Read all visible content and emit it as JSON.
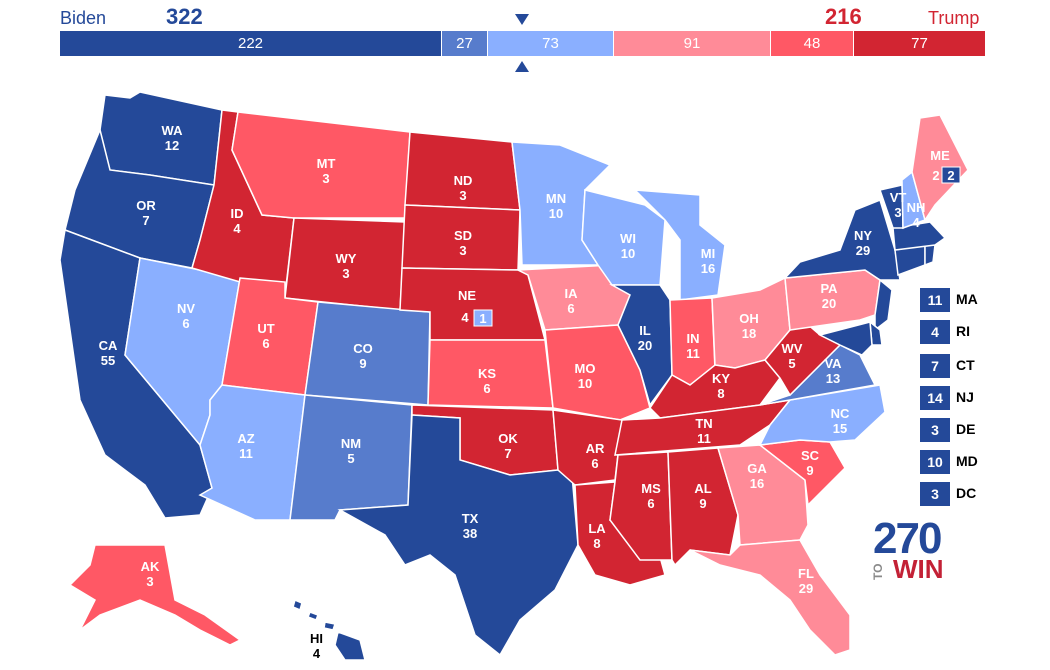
{
  "header": {
    "dem_name": "Biden",
    "dem_total": "322",
    "rep_name": "Trump",
    "rep_total": "216"
  },
  "bar_segments": [
    {
      "value": "222",
      "votes": 222,
      "color": "#244999"
    },
    {
      "value": "27",
      "votes": 27,
      "color": "#577ccc"
    },
    {
      "value": "73",
      "votes": 73,
      "color": "#8aafff"
    },
    {
      "value": "91",
      "votes": 91,
      "color": "#ff8b98"
    },
    {
      "value": "48",
      "votes": 48,
      "color": "#ff5865"
    },
    {
      "value": "77",
      "votes": 77,
      "color": "#d22532"
    }
  ],
  "colors": {
    "safe_d": "#244999",
    "likely_d": "#577ccc",
    "lean_d": "#8aafff",
    "lean_r": "#ff8b98",
    "likely_r": "#ff5865",
    "safe_r": "#d22532"
  },
  "states": {
    "WA": {
      "abbr": "WA",
      "ev": "12"
    },
    "OR": {
      "abbr": "OR",
      "ev": "7"
    },
    "CA": {
      "abbr": "CA",
      "ev": "55"
    },
    "NV": {
      "abbr": "NV",
      "ev": "6"
    },
    "ID": {
      "abbr": "ID",
      "ev": "4"
    },
    "MT": {
      "abbr": "MT",
      "ev": "3"
    },
    "WY": {
      "abbr": "WY",
      "ev": "3"
    },
    "UT": {
      "abbr": "UT",
      "ev": "6"
    },
    "AZ": {
      "abbr": "AZ",
      "ev": "11"
    },
    "CO": {
      "abbr": "CO",
      "ev": "9"
    },
    "NM": {
      "abbr": "NM",
      "ev": "5"
    },
    "ND": {
      "abbr": "ND",
      "ev": "3"
    },
    "SD": {
      "abbr": "SD",
      "ev": "3"
    },
    "NE": {
      "abbr": "NE",
      "ev": "4",
      "district_ev": "1"
    },
    "KS": {
      "abbr": "KS",
      "ev": "6"
    },
    "OK": {
      "abbr": "OK",
      "ev": "7"
    },
    "TX": {
      "abbr": "TX",
      "ev": "38"
    },
    "MN": {
      "abbr": "MN",
      "ev": "10"
    },
    "IA": {
      "abbr": "IA",
      "ev": "6"
    },
    "MO": {
      "abbr": "MO",
      "ev": "10"
    },
    "AR": {
      "abbr": "AR",
      "ev": "6"
    },
    "LA": {
      "abbr": "LA",
      "ev": "8"
    },
    "WI": {
      "abbr": "WI",
      "ev": "10"
    },
    "IL": {
      "abbr": "IL",
      "ev": "20"
    },
    "MI": {
      "abbr": "MI",
      "ev": "16"
    },
    "IN": {
      "abbr": "IN",
      "ev": "11"
    },
    "OH": {
      "abbr": "OH",
      "ev": "18"
    },
    "KY": {
      "abbr": "KY",
      "ev": "8"
    },
    "TN": {
      "abbr": "TN",
      "ev": "11"
    },
    "MS": {
      "abbr": "MS",
      "ev": "6"
    },
    "AL": {
      "abbr": "AL",
      "ev": "9"
    },
    "GA": {
      "abbr": "GA",
      "ev": "16"
    },
    "FL": {
      "abbr": "FL",
      "ev": "29"
    },
    "SC": {
      "abbr": "SC",
      "ev": "9"
    },
    "NC": {
      "abbr": "NC",
      "ev": "15"
    },
    "VA": {
      "abbr": "VA",
      "ev": "13"
    },
    "WV": {
      "abbr": "WV",
      "ev": "5"
    },
    "PA": {
      "abbr": "PA",
      "ev": "20"
    },
    "NY": {
      "abbr": "NY",
      "ev": "29"
    },
    "VT": {
      "abbr": "VT",
      "ev": "3"
    },
    "NH": {
      "abbr": "NH",
      "ev": "4"
    },
    "ME": {
      "abbr": "ME",
      "ev": "2",
      "district_ev": "2"
    },
    "AK": {
      "abbr": "AK",
      "ev": "3"
    },
    "HI": {
      "abbr": "HI",
      "ev": "4"
    }
  },
  "northeast_list": [
    {
      "ev": "11",
      "abbr": "MA"
    },
    {
      "ev": "4",
      "abbr": "RI"
    },
    {
      "ev": "7",
      "abbr": "CT"
    },
    {
      "ev": "14",
      "abbr": "NJ"
    },
    {
      "ev": "3",
      "abbr": "DE"
    },
    {
      "ev": "10",
      "abbr": "MD"
    },
    {
      "ev": "3",
      "abbr": "DC"
    }
  ],
  "logo": {
    "number": "270",
    "to": "TO",
    "win": "WIN"
  }
}
